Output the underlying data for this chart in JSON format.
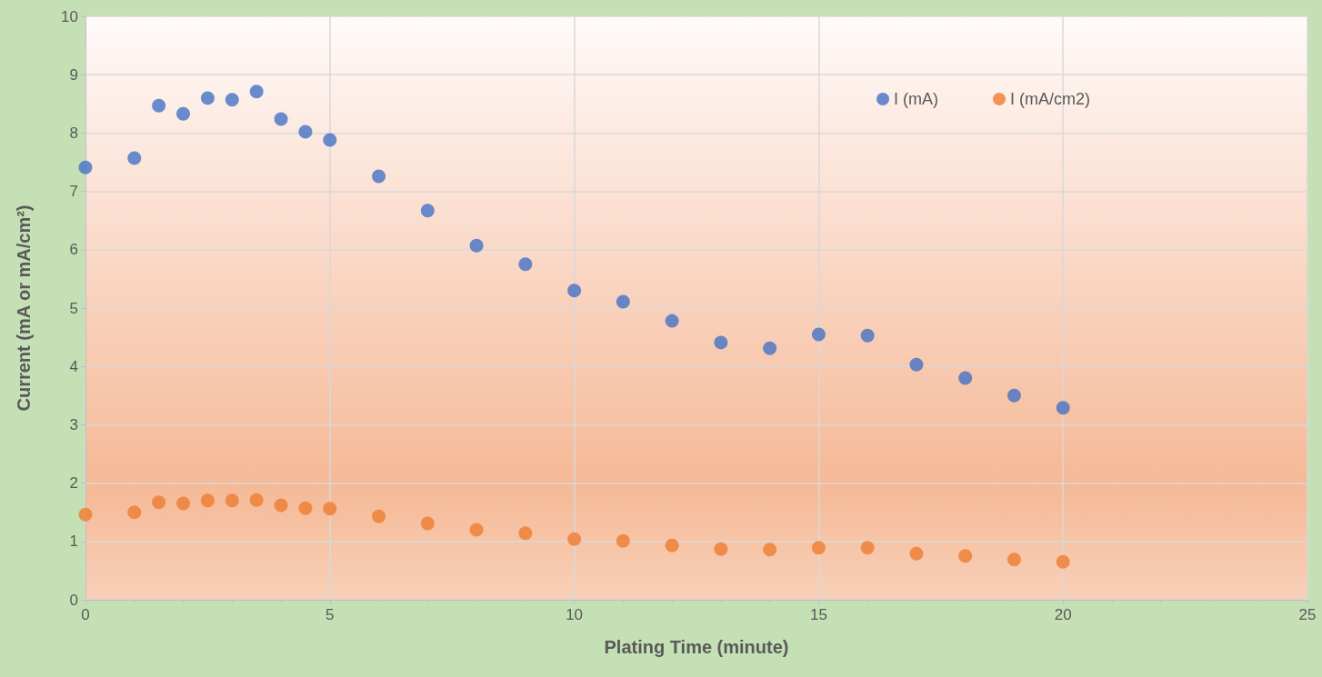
{
  "chart_data": {
    "type": "scatter",
    "xlabel": "Plating Time (minute)",
    "ylabel": "Current (mA or mA/cm²)",
    "x": [
      0,
      1,
      1.5,
      2,
      2.5,
      3,
      3.5,
      4,
      4.5,
      5,
      6,
      7,
      8,
      9,
      10,
      11,
      12,
      13,
      14,
      15,
      16,
      17,
      18,
      19,
      20
    ],
    "series": [
      {
        "name": "I (mA)",
        "color": "#4472c4",
        "values": [
          7.41,
          7.57,
          8.47,
          8.33,
          8.6,
          8.57,
          8.71,
          8.24,
          8.02,
          7.88,
          7.26,
          6.67,
          6.07,
          5.75,
          5.3,
          5.11,
          4.78,
          4.41,
          4.31,
          4.55,
          4.53,
          4.03,
          3.8,
          3.5,
          3.29
        ]
      },
      {
        "name": "I (mA/cm2)",
        "color": "#ed7d31",
        "values": [
          1.46,
          1.5,
          1.67,
          1.65,
          1.7,
          1.7,
          1.71,
          1.62,
          1.57,
          1.56,
          1.43,
          1.31,
          1.2,
          1.14,
          1.04,
          1.01,
          0.93,
          0.87,
          0.86,
          0.89,
          0.89,
          0.79,
          0.75,
          0.69,
          0.65
        ]
      }
    ],
    "xlim": [
      0,
      25
    ],
    "xticks": [
      0,
      5,
      10,
      15,
      20,
      25
    ],
    "ylim": [
      0,
      10
    ],
    "yticks": [
      0,
      1,
      2,
      3,
      4,
      5,
      6,
      7,
      8,
      9,
      10
    ],
    "grid": true,
    "legend": "top right",
    "marker": "circle"
  }
}
